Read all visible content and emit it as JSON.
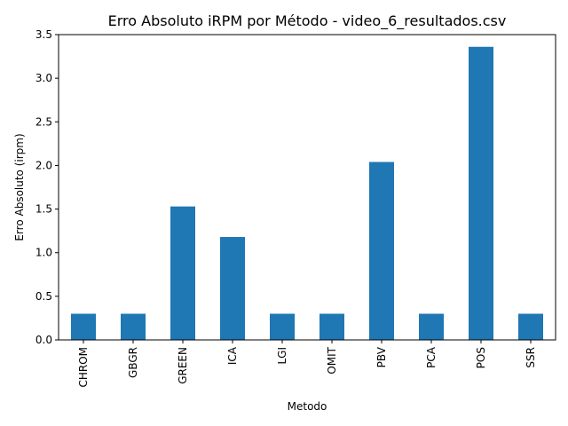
{
  "chart_data": {
    "type": "bar",
    "title": "Erro Absoluto iRPM por Método - video_6_resultados.csv",
    "xlabel": "Metodo",
    "ylabel": "Erro Absoluto (irpm)",
    "categories": [
      "CHROM",
      "GBGR",
      "GREEN",
      "ICA",
      "LGI",
      "OMIT",
      "PBV",
      "PCA",
      "POS",
      "SSR"
    ],
    "values": [
      0.3,
      0.3,
      1.53,
      1.18,
      0.3,
      0.3,
      2.04,
      0.3,
      3.36,
      0.3
    ],
    "ylim": [
      0,
      3.5
    ],
    "yticks": [
      "0.0",
      "0.5",
      "1.0",
      "1.5",
      "2.0",
      "2.5",
      "3.0",
      "3.5"
    ],
    "bar_color": "#1f77b4",
    "grid": false,
    "legend": false
  }
}
